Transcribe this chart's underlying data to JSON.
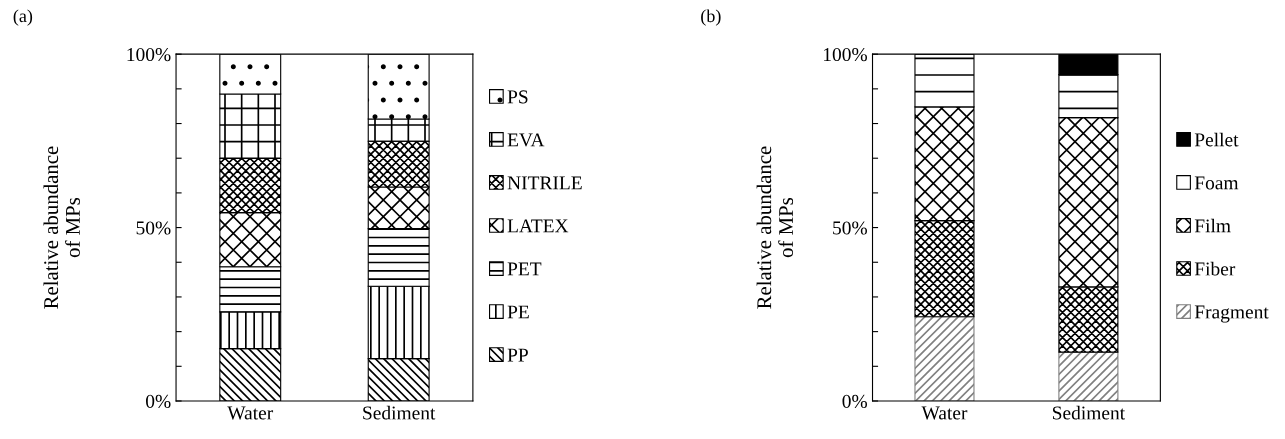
{
  "chart_data": [
    {
      "type": "bar",
      "stacked": true,
      "categories": [
        "Water",
        "Sediment"
      ],
      "ylabel": "Relative abundance\nof MPs",
      "annotations": [
        "(a)"
      ],
      "ylim": [
        0,
        100
      ],
      "yticks": [
        {
          "value": 0,
          "label": "0%"
        },
        {
          "value": 10,
          "label": null
        },
        {
          "value": 20,
          "label": null
        },
        {
          "value": 30,
          "label": null
        },
        {
          "value": 40,
          "label": null
        },
        {
          "value": 50,
          "label": "50%"
        },
        {
          "value": 60,
          "label": null
        },
        {
          "value": 70,
          "label": null
        },
        {
          "value": 80,
          "label": null
        },
        {
          "value": 90,
          "label": null
        },
        {
          "value": 100,
          "label": "100%"
        }
      ],
      "grid": false,
      "legend": "right",
      "series": [
        {
          "name": "PP",
          "color": "#000000",
          "values": [
            15.1,
            12.2
          ]
        },
        {
          "name": "PE",
          "color": "#000000",
          "values": [
            10.6,
            20.9
          ]
        },
        {
          "name": "PET",
          "color": "#000000",
          "values": [
            13.0,
            16.6
          ]
        },
        {
          "name": "LATEX",
          "color": "#000000",
          "values": [
            15.6,
            12.0
          ]
        },
        {
          "name": "NITRILE",
          "color": "#000000",
          "values": [
            15.6,
            13.2
          ]
        },
        {
          "name": "EVA",
          "color": "#000000",
          "values": [
            18.6,
            6.4
          ]
        },
        {
          "name": "PS",
          "color": "#000000",
          "values": [
            11.5,
            18.7
          ]
        }
      ]
    },
    {
      "type": "bar",
      "stacked": true,
      "categories": [
        "Water",
        "Sediment"
      ],
      "ylabel": "Relative abundance\nof MPs",
      "annotations": [
        "(b)"
      ],
      "ylim": [
        0,
        100
      ],
      "yticks": [
        {
          "value": 0,
          "label": "0%"
        },
        {
          "value": 10,
          "label": null
        },
        {
          "value": 20,
          "label": null
        },
        {
          "value": 30,
          "label": null
        },
        {
          "value": 40,
          "label": null
        },
        {
          "value": 50,
          "label": "50%"
        },
        {
          "value": 60,
          "label": null
        },
        {
          "value": 70,
          "label": null
        },
        {
          "value": 80,
          "label": null
        },
        {
          "value": 90,
          "label": null
        },
        {
          "value": 100,
          "label": "100%"
        }
      ],
      "grid": false,
      "legend": "right",
      "series": [
        {
          "name": "Fragment",
          "color": "#808080",
          "values": [
            24.3,
            14.1
          ]
        },
        {
          "name": "Fiber",
          "color": "#000000",
          "values": [
            27.7,
            18.8
          ]
        },
        {
          "name": "Film",
          "color": "#000000",
          "values": [
            32.8,
            48.8
          ]
        },
        {
          "name": "Foam",
          "color": "#000000",
          "values": [
            15.2,
            12.4
          ]
        },
        {
          "name": "Pellet",
          "color": "#000000",
          "values": [
            0,
            5.9
          ]
        }
      ]
    }
  ]
}
